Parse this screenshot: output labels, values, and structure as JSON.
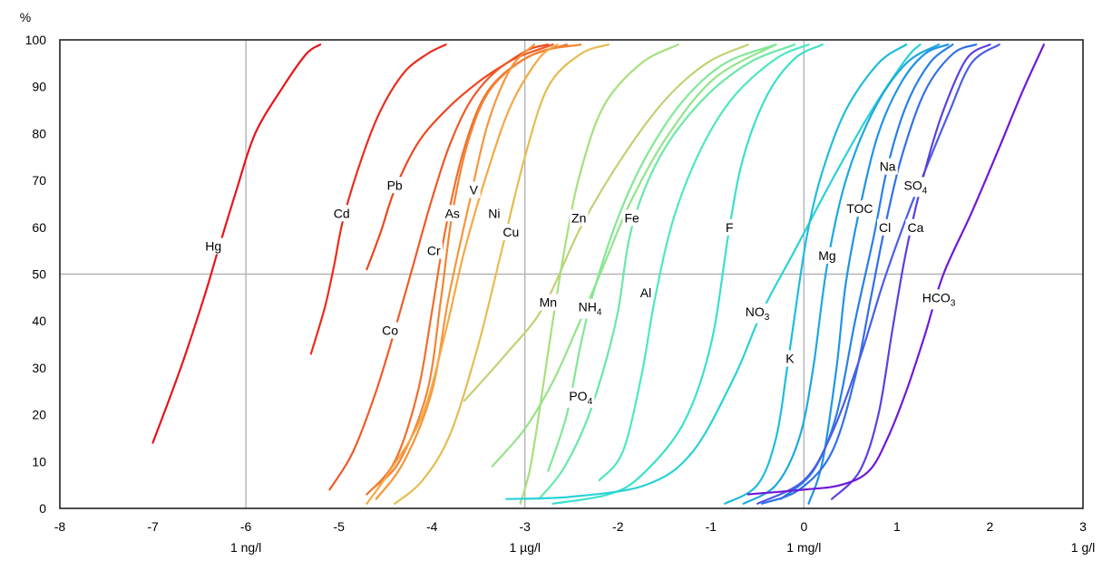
{
  "chart_data": {
    "type": "line",
    "title": "",
    "xlabel": "",
    "ylabel": "%",
    "xlim": [
      -8,
      3
    ],
    "ylim": [
      0,
      100
    ],
    "x_ticks": [
      "-8",
      "-7",
      "-6",
      "-5",
      "-4",
      "-3",
      "-2",
      "-1",
      "0",
      "1",
      "2",
      "3"
    ],
    "y_ticks": [
      "0",
      "10",
      "20",
      "30",
      "40",
      "50",
      "60",
      "70",
      "80",
      "90",
      "100"
    ],
    "x_unit_labels": [
      {
        "x": -6,
        "text": "1 ng/l"
      },
      {
        "x": -3,
        "text": "1 µg/l"
      },
      {
        "x": 0,
        "text": "1 mg/l"
      },
      {
        "x": 3,
        "text": "1 g/l"
      }
    ],
    "grid": {
      "x": [
        -6,
        -3,
        0
      ],
      "y": [
        50
      ]
    },
    "legend": "none",
    "series": [
      {
        "name": "Hg",
        "sub": "",
        "color": "#e8141a",
        "label_at": [
          -6.35,
          56
        ],
        "points": [
          [
            -7.0,
            14
          ],
          [
            -6.7,
            30
          ],
          [
            -6.45,
            45
          ],
          [
            -6.3,
            55
          ],
          [
            -6.1,
            68
          ],
          [
            -5.9,
            80
          ],
          [
            -5.6,
            90
          ],
          [
            -5.35,
            97
          ],
          [
            -5.2,
            99
          ]
        ]
      },
      {
        "name": "Cd",
        "sub": "",
        "color": "#ea2c1c",
        "label_at": [
          -4.97,
          63
        ],
        "points": [
          [
            -5.3,
            33
          ],
          [
            -5.15,
            43
          ],
          [
            -5.05,
            52
          ],
          [
            -4.95,
            62
          ],
          [
            -4.75,
            75
          ],
          [
            -4.55,
            85
          ],
          [
            -4.3,
            93
          ],
          [
            -4.05,
            97
          ],
          [
            -3.85,
            99
          ]
        ]
      },
      {
        "name": "Pb",
        "sub": "",
        "color": "#ec461e",
        "label_at": [
          -4.4,
          69
        ],
        "points": [
          [
            -4.7,
            51
          ],
          [
            -4.55,
            59
          ],
          [
            -4.4,
            68
          ],
          [
            -4.15,
            78
          ],
          [
            -3.85,
            85
          ],
          [
            -3.5,
            91
          ],
          [
            -3.2,
            95
          ],
          [
            -2.95,
            98
          ],
          [
            -2.75,
            99
          ]
        ]
      },
      {
        "name": "Co",
        "sub": "",
        "color": "#ee5a26",
        "label_at": [
          -4.45,
          38
        ],
        "points": [
          [
            -5.1,
            4
          ],
          [
            -4.85,
            12
          ],
          [
            -4.6,
            25
          ],
          [
            -4.4,
            38
          ],
          [
            -4.2,
            52
          ],
          [
            -4.0,
            66
          ],
          [
            -3.8,
            78
          ],
          [
            -3.55,
            88
          ],
          [
            -3.2,
            95
          ],
          [
            -2.7,
            99
          ]
        ]
      },
      {
        "name": "Cr",
        "sub": "",
        "color": "#f06e2c",
        "label_at": [
          -3.98,
          55
        ],
        "points": [
          [
            -4.7,
            3
          ],
          [
            -4.4,
            10
          ],
          [
            -4.15,
            25
          ],
          [
            -4.0,
            42
          ],
          [
            -3.85,
            60
          ],
          [
            -3.65,
            77
          ],
          [
            -3.4,
            89
          ],
          [
            -3.0,
            96
          ],
          [
            -2.55,
            99
          ]
        ]
      },
      {
        "name": "As",
        "sub": "",
        "color": "#f28434",
        "label_at": [
          -3.78,
          63
        ],
        "points": [
          [
            -4.65,
            4
          ],
          [
            -4.35,
            10
          ],
          [
            -4.05,
            25
          ],
          [
            -3.9,
            45
          ],
          [
            -3.78,
            63
          ],
          [
            -3.6,
            79
          ],
          [
            -3.35,
            90
          ],
          [
            -2.9,
            97
          ],
          [
            -2.4,
            99
          ]
        ]
      },
      {
        "name": "V",
        "sub": "",
        "color": "#f4963c",
        "label_at": [
          -3.55,
          68
        ],
        "points": [
          [
            -4.6,
            2
          ],
          [
            -4.3,
            10
          ],
          [
            -4.0,
            25
          ],
          [
            -3.82,
            45
          ],
          [
            -3.6,
            65
          ],
          [
            -3.4,
            82
          ],
          [
            -3.15,
            94
          ],
          [
            -2.9,
            99
          ]
        ]
      },
      {
        "name": "Ni",
        "sub": "",
        "color": "#f4a846",
        "label_at": [
          -3.33,
          63
        ],
        "points": [
          [
            -4.7,
            1
          ],
          [
            -4.45,
            8
          ],
          [
            -4.1,
            20
          ],
          [
            -3.85,
            38
          ],
          [
            -3.65,
            55
          ],
          [
            -3.4,
            72
          ],
          [
            -3.15,
            86
          ],
          [
            -2.85,
            96
          ],
          [
            -2.65,
            99
          ]
        ]
      },
      {
        "name": "Cu",
        "sub": "",
        "color": "#e6bc52",
        "label_at": [
          -3.15,
          59
        ],
        "points": [
          [
            -4.4,
            1
          ],
          [
            -4.1,
            6
          ],
          [
            -3.8,
            16
          ],
          [
            -3.5,
            35
          ],
          [
            -3.25,
            55
          ],
          [
            -3.0,
            75
          ],
          [
            -2.75,
            90
          ],
          [
            -2.4,
            97
          ],
          [
            -2.1,
            99
          ]
        ]
      },
      {
        "name": "Mn",
        "sub": "",
        "color": "#c4d072",
        "label_at": [
          -2.75,
          44
        ],
        "points": [
          [
            -3.65,
            23
          ],
          [
            -3.2,
            33
          ],
          [
            -2.8,
            43
          ],
          [
            -2.4,
            60
          ],
          [
            -1.95,
            75
          ],
          [
            -1.5,
            87
          ],
          [
            -1.05,
            95
          ],
          [
            -0.6,
            99
          ]
        ]
      },
      {
        "name": "Zn",
        "sub": "",
        "color": "#a6e07e",
        "label_at": [
          -2.42,
          62
        ],
        "points": [
          [
            -3.05,
            1
          ],
          [
            -2.95,
            8
          ],
          [
            -2.85,
            20
          ],
          [
            -2.7,
            40
          ],
          [
            -2.55,
            58
          ],
          [
            -2.4,
            72
          ],
          [
            -2.15,
            86
          ],
          [
            -1.75,
            95
          ],
          [
            -1.35,
            99
          ]
        ]
      },
      {
        "name": "PO",
        "sub": "4",
        "color": "#94e48a",
        "label_at": [
          -2.4,
          24
        ],
        "points": [
          [
            -3.35,
            9
          ],
          [
            -3.0,
            17
          ],
          [
            -2.7,
            27
          ],
          [
            -2.45,
            38
          ],
          [
            -2.15,
            52
          ],
          [
            -1.85,
            66
          ],
          [
            -1.45,
            80
          ],
          [
            -0.95,
            92
          ],
          [
            -0.3,
            99
          ]
        ]
      },
      {
        "name": "NH",
        "sub": "4",
        "color": "#80e896",
        "label_at": [
          -2.3,
          43
        ],
        "points": [
          [
            -2.75,
            8
          ],
          [
            -2.55,
            20
          ],
          [
            -2.4,
            35
          ],
          [
            -2.25,
            47
          ],
          [
            -2.0,
            62
          ],
          [
            -1.7,
            75
          ],
          [
            -1.3,
            87
          ],
          [
            -0.85,
            95
          ],
          [
            -0.3,
            99
          ]
        ]
      },
      {
        "name": "Fe",
        "sub": "",
        "color": "#6ae8a8",
        "label_at": [
          -1.85,
          62
        ],
        "points": [
          [
            -2.85,
            2
          ],
          [
            -2.6,
            8
          ],
          [
            -2.35,
            18
          ],
          [
            -2.15,
            30
          ],
          [
            -2.0,
            42
          ],
          [
            -1.85,
            60
          ],
          [
            -1.55,
            75
          ],
          [
            -1.1,
            87
          ],
          [
            -0.6,
            95
          ],
          [
            -0.1,
            99
          ]
        ]
      },
      {
        "name": "Al",
        "sub": "",
        "color": "#4ee8c0",
        "label_at": [
          -1.7,
          46
        ],
        "points": [
          [
            -2.2,
            6
          ],
          [
            -1.95,
            12
          ],
          [
            -1.75,
            28
          ],
          [
            -1.6,
            45
          ],
          [
            -1.4,
            62
          ],
          [
            -1.1,
            77
          ],
          [
            -0.75,
            88
          ],
          [
            -0.3,
            96
          ],
          [
            0.05,
            99
          ]
        ]
      },
      {
        "name": "F",
        "sub": "",
        "color": "#3ae0cc",
        "label_at": [
          -0.8,
          60
        ],
        "points": [
          [
            -2.7,
            1
          ],
          [
            -2.1,
            3
          ],
          [
            -1.75,
            7
          ],
          [
            -1.3,
            18
          ],
          [
            -1.0,
            35
          ],
          [
            -0.8,
            60
          ],
          [
            -0.65,
            75
          ],
          [
            -0.4,
            88
          ],
          [
            -0.1,
            96
          ],
          [
            0.2,
            99
          ]
        ]
      },
      {
        "name": "NO",
        "sub": "3",
        "color": "#2ad2d6",
        "label_at": [
          -0.5,
          42
        ],
        "points": [
          [
            -3.2,
            2
          ],
          [
            -2.5,
            2.5
          ],
          [
            -1.7,
            5
          ],
          [
            -1.2,
            12
          ],
          [
            -0.75,
            28
          ],
          [
            -0.45,
            42
          ],
          [
            -0.1,
            55
          ],
          [
            0.3,
            70
          ],
          [
            0.7,
            84
          ],
          [
            1.1,
            96
          ],
          [
            1.25,
            99
          ]
        ]
      },
      {
        "name": "K",
        "sub": "",
        "color": "#20bcdc",
        "label_at": [
          -0.15,
          32
        ],
        "points": [
          [
            -0.85,
            1
          ],
          [
            -0.5,
            5
          ],
          [
            -0.3,
            15
          ],
          [
            -0.18,
            30
          ],
          [
            -0.05,
            48
          ],
          [
            0.05,
            60
          ],
          [
            0.2,
            72
          ],
          [
            0.45,
            85
          ],
          [
            0.8,
            95
          ],
          [
            1.1,
            99
          ]
        ]
      },
      {
        "name": "Mg",
        "sub": "",
        "color": "#1ea8e0",
        "label_at": [
          0.25,
          54
        ],
        "points": [
          [
            -0.65,
            1
          ],
          [
            -0.3,
            5
          ],
          [
            -0.05,
            15
          ],
          [
            0.1,
            30
          ],
          [
            0.25,
            52
          ],
          [
            0.45,
            70
          ],
          [
            0.75,
            85
          ],
          [
            1.1,
            95
          ],
          [
            1.45,
            99
          ]
        ]
      },
      {
        "name": "TOC",
        "sub": "",
        "color": "#2094e4",
        "label_at": [
          0.6,
          64
        ],
        "points": [
          [
            0.05,
            1
          ],
          [
            0.2,
            10
          ],
          [
            0.35,
            30
          ],
          [
            0.45,
            48
          ],
          [
            0.6,
            64
          ],
          [
            0.8,
            80
          ],
          [
            1.05,
            91
          ],
          [
            1.3,
            97
          ],
          [
            1.55,
            99
          ]
        ]
      },
      {
        "name": "Na",
        "sub": "",
        "color": "#2680e6",
        "label_at": [
          0.9,
          73
        ],
        "points": [
          [
            -0.25,
            2
          ],
          [
            0.1,
            8
          ],
          [
            0.35,
            20
          ],
          [
            0.55,
            40
          ],
          [
            0.75,
            58
          ],
          [
            0.9,
            73
          ],
          [
            1.1,
            86
          ],
          [
            1.35,
            95
          ],
          [
            1.6,
            99
          ]
        ]
      },
      {
        "name": "Cl",
        "sub": "",
        "color": "#3270e8",
        "label_at": [
          0.87,
          60
        ],
        "points": [
          [
            -0.45,
            1
          ],
          [
            -0.05,
            4
          ],
          [
            0.3,
            12
          ],
          [
            0.55,
            28
          ],
          [
            0.72,
            45
          ],
          [
            0.87,
            60
          ],
          [
            1.05,
            75
          ],
          [
            1.3,
            89
          ],
          [
            1.6,
            97
          ],
          [
            1.85,
            99
          ]
        ]
      },
      {
        "name": "SO",
        "sub": "4",
        "color": "#4a5ce6",
        "label_at": [
          1.2,
          69
        ],
        "points": [
          [
            -0.5,
            1
          ],
          [
            0.0,
            6
          ],
          [
            0.3,
            16
          ],
          [
            0.6,
            32
          ],
          [
            0.85,
            48
          ],
          [
            1.1,
            62
          ],
          [
            1.3,
            72
          ],
          [
            1.55,
            84
          ],
          [
            1.8,
            95
          ],
          [
            2.1,
            99
          ]
        ]
      },
      {
        "name": "Ca",
        "sub": "",
        "color": "#5c40e0",
        "label_at": [
          1.2,
          60
        ],
        "points": [
          [
            0.3,
            2
          ],
          [
            0.6,
            8
          ],
          [
            0.8,
            20
          ],
          [
            0.95,
            38
          ],
          [
            1.1,
            55
          ],
          [
            1.3,
            72
          ],
          [
            1.5,
            85
          ],
          [
            1.75,
            96
          ],
          [
            2.0,
            99
          ]
        ]
      },
      {
        "name": "HCO",
        "sub": "3",
        "color": "#7018d8",
        "label_at": [
          1.45,
          45
        ],
        "points": [
          [
            -0.6,
            3
          ],
          [
            0.0,
            4
          ],
          [
            0.4,
            5
          ],
          [
            0.7,
            8
          ],
          [
            0.9,
            15
          ],
          [
            1.1,
            25
          ],
          [
            1.3,
            37
          ],
          [
            1.5,
            50
          ],
          [
            1.8,
            63
          ],
          [
            2.1,
            77
          ],
          [
            2.35,
            89
          ],
          [
            2.58,
            99
          ]
        ]
      }
    ]
  }
}
